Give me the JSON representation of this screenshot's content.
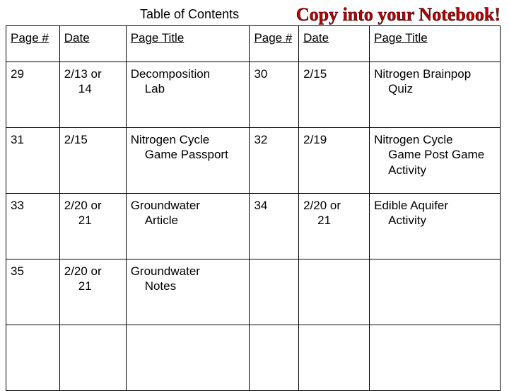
{
  "header": {
    "toc_title": "Table of Contents",
    "copy_text": "Copy into your Notebook!"
  },
  "columns": {
    "page1": "Page #",
    "date1": "Date",
    "title1": "Page Title",
    "page2": "Page #",
    "date2": "Date",
    "title2": "Page Title"
  },
  "rows": [
    {
      "page1": "29",
      "date1_a": "2/13 or",
      "date1_b": "14",
      "title1_a": "Decomposition",
      "title1_b": "Lab",
      "page2": "30",
      "date2_a": "2/15",
      "date2_b": "",
      "title2_a": "Nitrogen Brainpop",
      "title2_b": "Quiz"
    },
    {
      "page1": "31",
      "date1_a": "2/15",
      "date1_b": "",
      "title1_a": "Nitrogen Cycle",
      "title1_b": "Game Passport",
      "page2": "32",
      "date2_a": "2/19",
      "date2_b": "",
      "title2_a": "Nitrogen Cycle",
      "title2_b": "Game Post Game Activity"
    },
    {
      "page1": "33",
      "date1_a": "2/20 or",
      "date1_b": "21",
      "title1_a": "Groundwater",
      "title1_b": "Article",
      "page2": "34",
      "date2_a": "2/20 or",
      "date2_b": "21",
      "title2_a": "Edible Aquifer",
      "title2_b": "Activity"
    },
    {
      "page1": "35",
      "date1_a": "2/20 or",
      "date1_b": "21",
      "title1_a": "Groundwater",
      "title1_b": "Notes",
      "page2": "",
      "date2_a": "",
      "date2_b": "",
      "title2_a": "",
      "title2_b": ""
    },
    {
      "page1": "",
      "date1_a": "",
      "date1_b": "",
      "title1_a": "",
      "title1_b": "",
      "page2": "",
      "date2_a": "",
      "date2_b": "",
      "title2_a": "",
      "title2_b": ""
    }
  ]
}
